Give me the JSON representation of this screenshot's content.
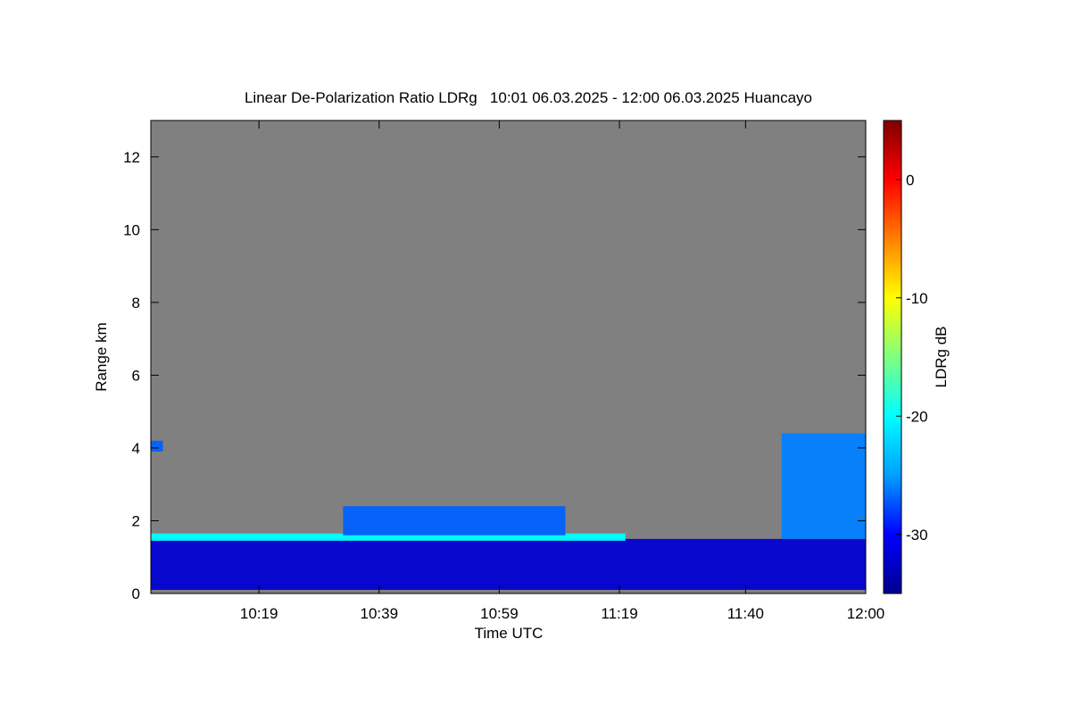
{
  "chart_data": {
    "type": "heatmap",
    "title": "Linear De-Polarization Ratio LDRg   10:01 06.03.2025 - 12:00 06.03.2025 Huancayo",
    "xlabel": "Time UTC",
    "ylabel": "Range km",
    "xlim": [
      "10:01",
      "12:00"
    ],
    "x_ticks": [
      "10:19",
      "10:39",
      "10:59",
      "11:19",
      "11:40",
      "12:00"
    ],
    "ylim": [
      0,
      13
    ],
    "y_ticks": [
      0,
      2,
      4,
      6,
      8,
      10,
      12
    ],
    "colorbar": {
      "label": "LDRg dB",
      "range": [
        -35,
        5
      ],
      "ticks": [
        0,
        -10,
        -20,
        -30
      ],
      "colormap": [
        "#00008f",
        "#0000ff",
        "#00a0ff",
        "#00ffff",
        "#80ff80",
        "#ffff00",
        "#ff8000",
        "#ff0000",
        "#800000"
      ]
    },
    "background_color": "#808080",
    "layers": [
      {
        "name": "surface-layer",
        "time_range": [
          "10:01",
          "12:00"
        ],
        "range_km": [
          0.1,
          1.5
        ],
        "ldr_db": -32
      },
      {
        "name": "depolarizing-band",
        "time_range": [
          "10:01",
          "11:20"
        ],
        "range_km": [
          1.45,
          1.65
        ],
        "ldr_db": -20
      },
      {
        "name": "aerosol-plume-10:30",
        "time_range": [
          "10:33",
          "11:10"
        ],
        "range_km": [
          1.6,
          2.4
        ],
        "ldr_db": -27
      },
      {
        "name": "elevated-aerosol-11:50",
        "time_range": [
          "11:46",
          "12:00"
        ],
        "range_km": [
          1.5,
          4.4
        ],
        "ldr_db": -26
      },
      {
        "name": "isolated-echo",
        "time_range": [
          "10:01",
          "10:03"
        ],
        "range_km": [
          3.9,
          4.2
        ],
        "ldr_db": -27
      }
    ]
  }
}
